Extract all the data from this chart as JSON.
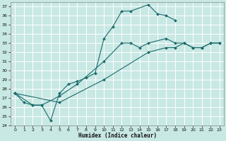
{
  "xlabel": "Humidex (Indice chaleur)",
  "xlim": [
    -0.5,
    23.5
  ],
  "ylim": [
    24,
    37.5
  ],
  "xticks": [
    0,
    1,
    2,
    3,
    4,
    5,
    6,
    7,
    8,
    9,
    10,
    11,
    12,
    13,
    14,
    15,
    16,
    17,
    18,
    19,
    20,
    21,
    22,
    23
  ],
  "yticks": [
    24,
    25,
    26,
    27,
    28,
    29,
    30,
    31,
    32,
    33,
    34,
    35,
    36,
    37
  ],
  "bg_color": "#c8e8e4",
  "line_color": "#1a6b6b",
  "grid_color": "#ffffff",
  "line1_x": [
    0,
    1,
    2,
    3,
    4,
    5,
    6,
    7,
    8,
    9,
    10,
    11,
    12,
    13,
    15,
    16,
    17,
    18
  ],
  "line1_y": [
    27.5,
    26.5,
    26.2,
    26.2,
    24.5,
    27.5,
    28.5,
    28.8,
    29.2,
    29.7,
    33.5,
    34.8,
    36.5,
    36.5,
    37.2,
    36.2,
    36.0,
    35.5
  ],
  "line2_x": [
    0,
    2,
    3,
    5,
    7,
    10,
    12,
    13,
    14,
    15,
    17,
    18,
    19,
    20,
    21,
    22,
    23
  ],
  "line2_y": [
    27.5,
    26.2,
    26.2,
    27.2,
    28.5,
    31.0,
    33.0,
    33.0,
    32.5,
    33.0,
    33.5,
    33.0,
    33.0,
    32.5,
    32.5,
    33.0,
    33.0
  ],
  "line3_x": [
    0,
    5,
    10,
    15,
    17,
    18,
    19,
    20,
    21,
    22,
    23
  ],
  "line3_y": [
    27.5,
    26.5,
    29.0,
    32.0,
    32.5,
    32.5,
    33.0,
    32.5,
    32.5,
    33.0,
    33.0
  ]
}
